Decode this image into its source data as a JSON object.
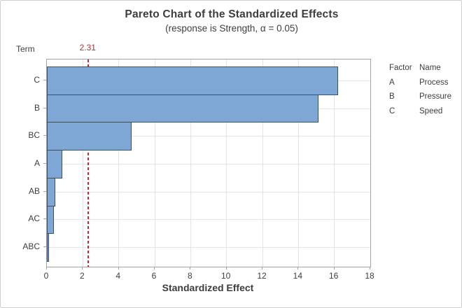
{
  "chart_data": {
    "type": "bar",
    "orientation": "horizontal",
    "title": "Pareto Chart of the Standardized Effects",
    "subtitle": "(response is Strength, α = 0.05)",
    "xlabel": "Standardized Effect",
    "ylabel": "Term",
    "categories": [
      "C",
      "B",
      "BC",
      "A",
      "AB",
      "AC",
      "ABC"
    ],
    "values": [
      16.2,
      15.1,
      4.7,
      0.86,
      0.45,
      0.4,
      0.1
    ],
    "reference_line": {
      "value": 2.31,
      "label": "2.31"
    },
    "xlim": [
      0,
      18
    ],
    "x_ticks": [
      0,
      2,
      4,
      6,
      8,
      10,
      12,
      14,
      16,
      18
    ],
    "grid": "both",
    "legend_position": "right",
    "colors": {
      "bar_fill": "#7fa7d6",
      "bar_border": "#3b5166",
      "reference_line": "#bf2c34",
      "reference_label": "#a93438",
      "gridline": "#e4e4e4",
      "axis": "#a3a3a3",
      "text": "#3d3d3d"
    }
  },
  "legend": {
    "header": {
      "factor": "Factor",
      "name": "Name"
    },
    "rows": [
      {
        "factor": "A",
        "name": "Process"
      },
      {
        "factor": "B",
        "name": "Pressure"
      },
      {
        "factor": "C",
        "name": "Speed"
      }
    ]
  }
}
